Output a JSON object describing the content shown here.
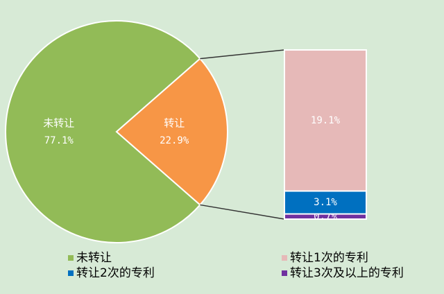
{
  "chart_data": {
    "type": "pie",
    "categories": [
      "未转让",
      "转让"
    ],
    "values": [
      77.1,
      22.9
    ],
    "value_labels": [
      "77.1%",
      "22.9%"
    ],
    "colors": [
      "#92bb57",
      "#f79646"
    ],
    "breakdown": {
      "categories": [
        "转让1次的专利",
        "转让2次的专利",
        "转让3次及以上的专利"
      ],
      "values": [
        19.1,
        3.1,
        0.7
      ],
      "value_labels": [
        "19.1%",
        "3.1%",
        "0.7%"
      ],
      "colors": [
        "#e6b9b8",
        "#0070c0",
        "#7030a0"
      ]
    }
  }
}
